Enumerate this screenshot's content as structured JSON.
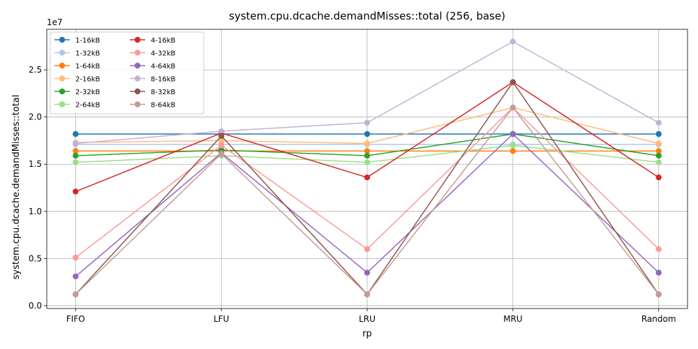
{
  "chart_data": {
    "type": "line",
    "title": "system.cpu.dcache.demandMisses::total (256, base)",
    "xlabel": "rp",
    "ylabel": "system.cpu.dcache.demandMisses::total",
    "y_multiplier_label": "1e7",
    "categories": [
      "FIFO",
      "LFU",
      "LRU",
      "MRU",
      "Random"
    ],
    "ylim": [
      -0.03,
      2.93
    ],
    "yticks": [
      0.0,
      0.5,
      1.0,
      1.5,
      2.0,
      2.5
    ],
    "ytick_labels": [
      "0.0",
      "0.5",
      "1.0",
      "1.5",
      "2.0",
      "2.5"
    ],
    "grid": true,
    "legend_position": "top-left",
    "legend_columns": 2,
    "series": [
      {
        "name": "1-16kB",
        "color": "#1f77b4",
        "values": [
          1.82,
          1.82,
          1.82,
          1.82,
          1.82
        ]
      },
      {
        "name": "1-32kB",
        "color": "#aec7e8",
        "values": [
          1.71,
          1.71,
          1.71,
          1.71,
          1.71
        ]
      },
      {
        "name": "1-64kB",
        "color": "#ff7f0e",
        "values": [
          1.64,
          1.64,
          1.64,
          1.64,
          1.64
        ]
      },
      {
        "name": "2-16kB",
        "color": "#ffbb78",
        "values": [
          1.73,
          1.75,
          1.72,
          2.1,
          1.72
        ]
      },
      {
        "name": "2-32kB",
        "color": "#2ca02c",
        "values": [
          1.59,
          1.65,
          1.59,
          1.82,
          1.59
        ]
      },
      {
        "name": "2-64kB",
        "color": "#98df8a",
        "values": [
          1.52,
          1.59,
          1.52,
          1.7,
          1.52
        ]
      },
      {
        "name": "4-16kB",
        "color": "#d62728",
        "values": [
          1.21,
          1.83,
          1.36,
          2.37,
          1.36
        ]
      },
      {
        "name": "4-32kB",
        "color": "#ff9896",
        "values": [
          0.51,
          1.7,
          0.6,
          2.1,
          0.6
        ]
      },
      {
        "name": "4-64kB",
        "color": "#9467bd",
        "values": [
          0.31,
          1.62,
          0.35,
          1.82,
          0.35
        ]
      },
      {
        "name": "8-16kB",
        "color": "#c5b0d5",
        "values": [
          1.72,
          1.85,
          1.94,
          2.8,
          1.94
        ]
      },
      {
        "name": "8-32kB",
        "color": "#8c564b",
        "values": [
          0.12,
          1.8,
          0.12,
          2.37,
          0.12
        ]
      },
      {
        "name": "8-64kB",
        "color": "#c49c94",
        "values": [
          0.12,
          1.61,
          0.12,
          2.1,
          0.12
        ]
      }
    ]
  }
}
